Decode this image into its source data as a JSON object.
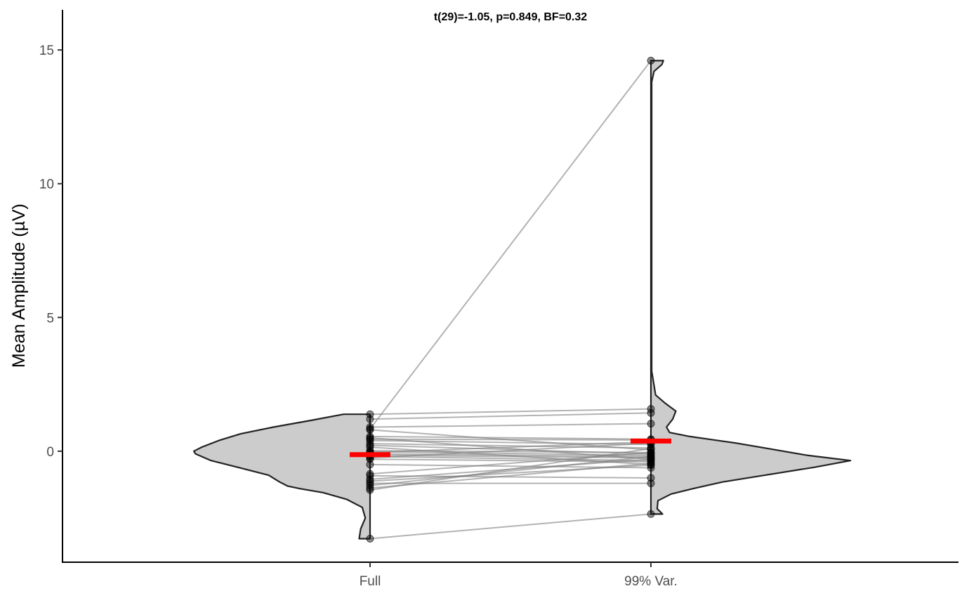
{
  "chart_data": {
    "type": "split-violin-paired",
    "title": "t(29)=-1.05, p=0.849, BF=0.32",
    "xlabel": "",
    "ylabel": "Mean Amplitude (µV)",
    "categories": [
      "Full",
      "99% Var."
    ],
    "ylim": [
      -4.15,
      16.5
    ],
    "yticks": [
      0,
      5,
      10,
      15
    ],
    "grid": false,
    "legend": "none",
    "colors": {
      "violin_fill": "#cccccc",
      "violin_stroke": "#222222",
      "mean_marker": "#ff0000",
      "paired_line": "#808080",
      "point": "#000000"
    },
    "means": [
      -0.13,
      0.38
    ],
    "paired": [
      {
        "full": 1.38,
        "var99": 1.58
      },
      {
        "full": 1.2,
        "var99": 1.43
      },
      {
        "full": 0.9,
        "var99": 1.03
      },
      {
        "full": 0.83,
        "var99": 14.6
      },
      {
        "full": 0.8,
        "var99": 0.05
      },
      {
        "full": 0.55,
        "var99": 0.45
      },
      {
        "full": 0.5,
        "var99": -0.3
      },
      {
        "full": 0.45,
        "var99": 0.42
      },
      {
        "full": 0.4,
        "var99": 0.25
      },
      {
        "full": 0.28,
        "var99": 0.12
      },
      {
        "full": 0.22,
        "var99": -0.1
      },
      {
        "full": 0.15,
        "var99": -0.5
      },
      {
        "full": 0.02,
        "var99": -0.05
      },
      {
        "full": -0.02,
        "var99": -0.15
      },
      {
        "full": -0.05,
        "var99": 0.35
      },
      {
        "full": -0.1,
        "var99": -0.2
      },
      {
        "full": -0.15,
        "var99": -0.25
      },
      {
        "full": -0.2,
        "var99": -0.35
      },
      {
        "full": -0.25,
        "var99": 0.3
      },
      {
        "full": -0.3,
        "var99": -0.4
      },
      {
        "full": -0.5,
        "var99": -0.62
      },
      {
        "full": -0.85,
        "var99": -0.05
      },
      {
        "full": -0.92,
        "var99": -1.0
      },
      {
        "full": -1.05,
        "var99": -0.3
      },
      {
        "full": -1.12,
        "var99": -0.52
      },
      {
        "full": -1.2,
        "var99": -1.2
      },
      {
        "full": -1.28,
        "var99": -0.2
      },
      {
        "full": -1.38,
        "var99": -0.45
      },
      {
        "full": -1.45,
        "var99": 0.1
      },
      {
        "full": -3.27,
        "var99": -2.35
      }
    ],
    "violin_full_left": [
      {
        "y": -3.27,
        "w": 0.0
      },
      {
        "y": -3.27,
        "w": 0.07
      },
      {
        "y": -2.9,
        "w": 0.06
      },
      {
        "y": -2.5,
        "w": 0.03
      },
      {
        "y": -2.1,
        "w": 0.05
      },
      {
        "y": -1.8,
        "w": 0.15
      },
      {
        "y": -1.55,
        "w": 0.3
      },
      {
        "y": -1.4,
        "w": 0.45
      },
      {
        "y": -1.3,
        "w": 0.53
      },
      {
        "y": -1.15,
        "w": 0.58
      },
      {
        "y": -0.9,
        "w": 0.65
      },
      {
        "y": -0.6,
        "w": 0.85
      },
      {
        "y": -0.35,
        "w": 1.02
      },
      {
        "y": -0.1,
        "w": 1.12
      },
      {
        "y": 0.0,
        "w": 1.13
      },
      {
        "y": 0.15,
        "w": 1.08
      },
      {
        "y": 0.4,
        "w": 0.97
      },
      {
        "y": 0.65,
        "w": 0.83
      },
      {
        "y": 0.9,
        "w": 0.62
      },
      {
        "y": 1.15,
        "w": 0.38
      },
      {
        "y": 1.38,
        "w": 0.17
      },
      {
        "y": 1.38,
        "w": 0.0
      }
    ],
    "violin_var99_right": [
      {
        "y": -2.35,
        "w": 0.0
      },
      {
        "y": -2.35,
        "w": 0.075
      },
      {
        "y": -2.15,
        "w": 0.04
      },
      {
        "y": -1.85,
        "w": 0.045
      },
      {
        "y": -1.6,
        "w": 0.13
      },
      {
        "y": -1.4,
        "w": 0.27
      },
      {
        "y": -1.15,
        "w": 0.46
      },
      {
        "y": -0.9,
        "w": 0.73
      },
      {
        "y": -0.6,
        "w": 1.05
      },
      {
        "y": -0.35,
        "w": 1.28
      },
      {
        "y": -0.15,
        "w": 1.0
      },
      {
        "y": 0.05,
        "w": 0.8
      },
      {
        "y": 0.3,
        "w": 0.55
      },
      {
        "y": 0.55,
        "w": 0.25
      },
      {
        "y": 0.7,
        "w": 0.12
      },
      {
        "y": 0.9,
        "w": 0.1
      },
      {
        "y": 1.2,
        "w": 0.14
      },
      {
        "y": 1.5,
        "w": 0.16
      },
      {
        "y": 1.8,
        "w": 0.09
      },
      {
        "y": 2.1,
        "w": 0.03
      },
      {
        "y": 3.0,
        "w": 0.005
      },
      {
        "y": 13.8,
        "w": 0.005
      },
      {
        "y": 14.2,
        "w": 0.02
      },
      {
        "y": 14.45,
        "w": 0.07
      },
      {
        "y": 14.6,
        "w": 0.08
      },
      {
        "y": 14.6,
        "w": 0.0
      }
    ]
  }
}
